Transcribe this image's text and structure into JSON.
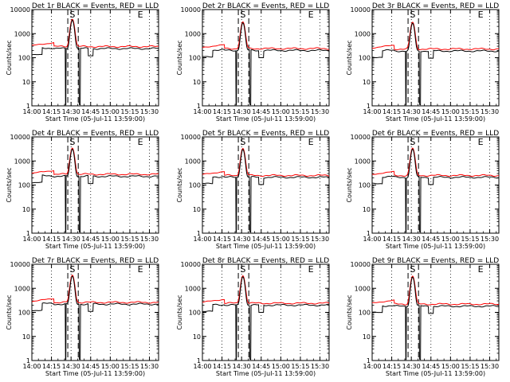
{
  "chart_data": {
    "type": "line",
    "layout": "3x3 grid",
    "xlabel": "Start Time (05-Jul-11 13:59:00)",
    "ylabel": "Counts/sec",
    "x_tick_labels": [
      "14:00",
      "14:15",
      "14:30",
      "14:45",
      "15:00",
      "15:15",
      "15:30"
    ],
    "x_tick_minutes": [
      0,
      15,
      30,
      45,
      60,
      75,
      90
    ],
    "xlim_minutes": [
      0,
      97
    ],
    "ylog": true,
    "ylim": [
      1,
      10000
    ],
    "y_tick_labels": [
      "1",
      "10",
      "100",
      "1000",
      "10000"
    ],
    "y_tick_values": [
      1,
      10,
      100,
      1000,
      10000
    ],
    "dotted_vlines_minutes": [
      15,
      30,
      45,
      60,
      75,
      90
    ],
    "dashed_vlines_minutes": [
      27.5,
      35.5
    ],
    "markers": [
      {
        "label": "S",
        "x_minute": 31
      },
      {
        "label": "E",
        "x_minute": 83
      }
    ],
    "colors": {
      "events": "#000000",
      "lld": "#ff0000",
      "axes": "#000000"
    },
    "panels": [
      {
        "title": "Det 1r BLACK = Events, RED = LLD",
        "base_events": 240,
        "base_lld": 290,
        "peak": 3600
      },
      {
        "title": "Det 2r BLACK = Events, RED = LLD",
        "base_events": 200,
        "base_lld": 240,
        "peak": 2800
      },
      {
        "title": "Det 3r BLACK = Events, RED = LLD",
        "base_events": 190,
        "base_lld": 230,
        "peak": 2700
      },
      {
        "title": "Det 4r BLACK = Events, RED = LLD",
        "base_events": 230,
        "base_lld": 280,
        "peak": 3100
      },
      {
        "title": "Det 5r BLACK = Events, RED = LLD",
        "base_events": 210,
        "base_lld": 250,
        "peak": 3000
      },
      {
        "title": "Det 6r BLACK = Events, RED = LLD",
        "base_events": 210,
        "base_lld": 250,
        "peak": 3100
      },
      {
        "title": "Det 7r BLACK = Events, RED = LLD",
        "base_events": 220,
        "base_lld": 260,
        "peak": 3200
      },
      {
        "title": "Det 8r BLACK = Events, RED = LLD",
        "base_events": 200,
        "base_lld": 240,
        "peak": 3000
      },
      {
        "title": "Det 9r BLACK = Events, RED = LLD",
        "base_events": 180,
        "base_lld": 220,
        "peak": 2900
      }
    ]
  }
}
